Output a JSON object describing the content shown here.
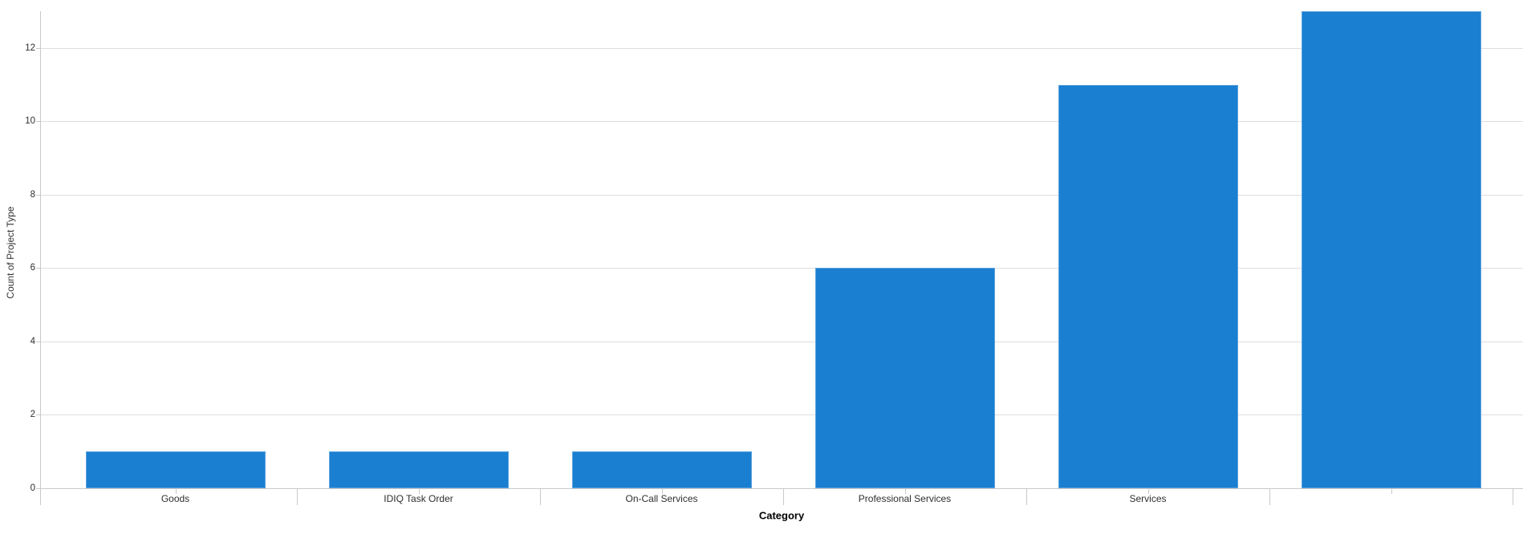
{
  "chart_data": {
    "type": "bar",
    "title": "",
    "xlabel": "Category",
    "ylabel": "Count of Project Type",
    "categories": [
      "Goods",
      "IDIQ Task Order",
      "On-Call Services",
      "Professional Services",
      "Services",
      ""
    ],
    "values": [
      1,
      1,
      1,
      6,
      11,
      13
    ],
    "series_name": "Count of Project Type",
    "ylim": [
      0,
      13
    ],
    "yticks": [
      0,
      2,
      4,
      6,
      8,
      10,
      12
    ],
    "grid": true,
    "legend": false,
    "colors": {
      "bar_fill": "#1a7fd1",
      "bar_edge": "#5ca2dd",
      "gridline": "#dedede",
      "axis": "#c9c9c9",
      "tick_text": "#2e2e2e",
      "axis_title": "#000000"
    }
  }
}
